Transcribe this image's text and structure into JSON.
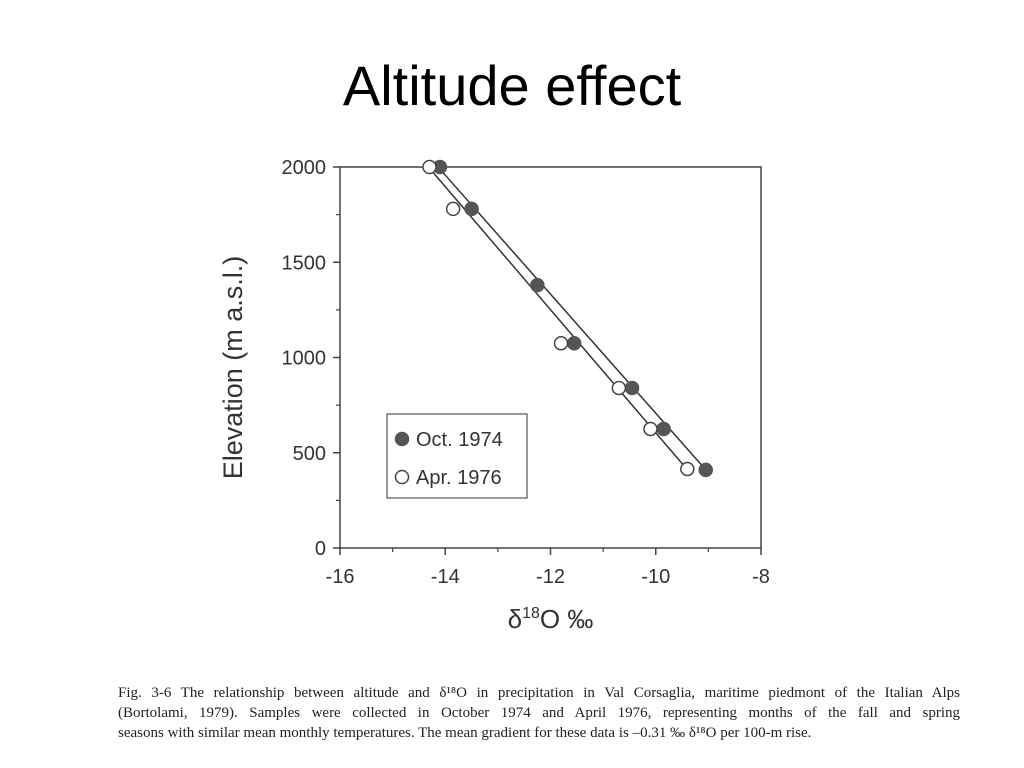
{
  "slide": {
    "title": "Altitude effect"
  },
  "caption": {
    "line1": "Fig. 3-6  The relationship between altitude and δ¹⁸O in precipitation in Val Corsaglia, maritime piedmont of the Italian Alps",
    "line2": "(Bortolami, 1979). Samples were collected in October 1974 and April 1976, representing months of the fall and spring",
    "line3": "seasons with similar mean monthly temperatures. The mean gradient for these data is –0.31 ‰ δ¹⁸O per 100-m rise."
  },
  "chart_data": {
    "type": "scatter",
    "xlabel_base": "δ",
    "xlabel_sup": "18",
    "xlabel_rest": "O ‰",
    "ylabel": "Elevation (m a.s.l.)",
    "xlim": [
      -16,
      -8
    ],
    "ylim": [
      0,
      2000
    ],
    "x_ticks": [
      "-16",
      "-14",
      "-12",
      "-10",
      "-8"
    ],
    "y_ticks": [
      "0",
      "500",
      "1000",
      "1500",
      "2000"
    ],
    "grid": false,
    "legend_position": "lower-left",
    "series": [
      {
        "name": "Oct. 1974",
        "marker": "filled-circle",
        "color": "#555555",
        "points": [
          [
            -14.1,
            2000
          ],
          [
            -13.5,
            1780
          ],
          [
            -12.25,
            1380
          ],
          [
            -11.55,
            1075
          ],
          [
            -10.45,
            840
          ],
          [
            -9.85,
            625
          ],
          [
            -9.05,
            410
          ]
        ],
        "fit": [
          [
            -14.2,
            2020
          ],
          [
            -9.0,
            395
          ]
        ]
      },
      {
        "name": "Apr. 1976",
        "marker": "open-circle",
        "color": "#555555",
        "points": [
          [
            -14.3,
            2000
          ],
          [
            -13.85,
            1780
          ],
          [
            -11.8,
            1075
          ],
          [
            -10.7,
            840
          ],
          [
            -10.1,
            625
          ],
          [
            -9.4,
            415
          ]
        ],
        "fit": [
          [
            -14.35,
            2010
          ],
          [
            -9.35,
            395
          ]
        ]
      }
    ]
  }
}
